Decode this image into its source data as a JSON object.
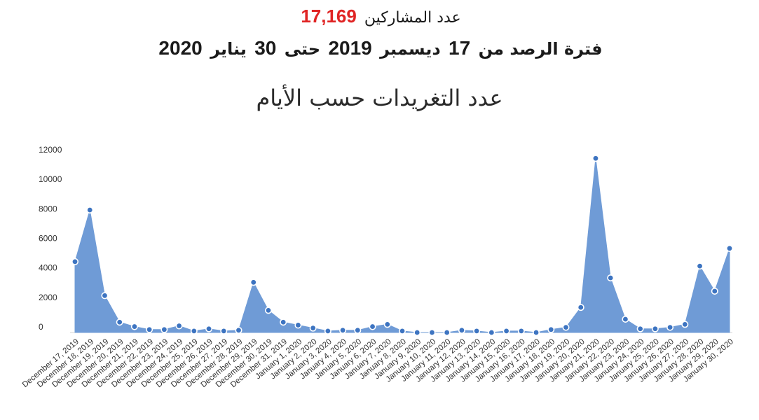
{
  "header": {
    "participants_label": "عدد المشاركين",
    "participants_count": "17,169",
    "period_prefix": "فترة الرصد من",
    "period_day1": "17",
    "period_month1": "ديسمبر",
    "period_year1": "2019",
    "period_to": "حتى",
    "period_day2": "30",
    "period_month2": "يناير",
    "period_year2": "2020",
    "chart_title": "عدد التغريدات حسب الأيام"
  },
  "colors": {
    "accent": "#e02424",
    "area_fill": "#6f9bd6",
    "marker": "#3d74c1",
    "axis_text": "#333333"
  },
  "chart_data": {
    "type": "area",
    "title": "عدد التغريدات حسب الأيام",
    "xlabel": "",
    "ylabel": "",
    "ylim": [
      0,
      12000
    ],
    "yticks": [
      0,
      2000,
      4000,
      6000,
      8000,
      10000,
      12000
    ],
    "grid": false,
    "categories": [
      "December 17, 2019",
      "December 18, 2019",
      "December 19, 2019",
      "December 20, 2019",
      "December 21, 2019",
      "December 22, 2019",
      "December 23, 2019",
      "December 24, 2019",
      "December 25, 2019",
      "December 26, 2019",
      "December 27, 2019",
      "December 28, 2019",
      "December 29, 2019",
      "December 30, 2019",
      "December 31, 2019",
      "January 1, 2020",
      "January 2, 2020",
      "January 3, 2020",
      "January 4, 2020",
      "January 5, 2020",
      "January 6, 2020",
      "January 7, 2020",
      "January 8, 2020",
      "January 9, 2020",
      "January 10, 2020",
      "January 11, 2020",
      "January 12, 2020",
      "January 13, 2020",
      "January 14, 2020",
      "January 15, 2020",
      "January 16, 2020",
      "January 17, 2020",
      "January 18, 2020",
      "January 19, 2020",
      "January 20, 2020",
      "January 21, 2020",
      "January 22, 2020",
      "January 23, 2020",
      "January 24, 2020",
      "January 25, 2020",
      "January 26, 2020",
      "January 27, 2020",
      "January 28, 2020",
      "January 29, 2020",
      "January 30, 2020"
    ],
    "values": [
      4800,
      8300,
      2500,
      700,
      400,
      200,
      200,
      450,
      100,
      250,
      100,
      150,
      3400,
      1500,
      700,
      500,
      300,
      100,
      150,
      150,
      400,
      550,
      100,
      0,
      0,
      0,
      150,
      100,
      0,
      100,
      100,
      0,
      200,
      350,
      1700,
      11800,
      3700,
      900,
      250,
      250,
      350,
      550,
      4500,
      2800,
      5700
    ]
  }
}
